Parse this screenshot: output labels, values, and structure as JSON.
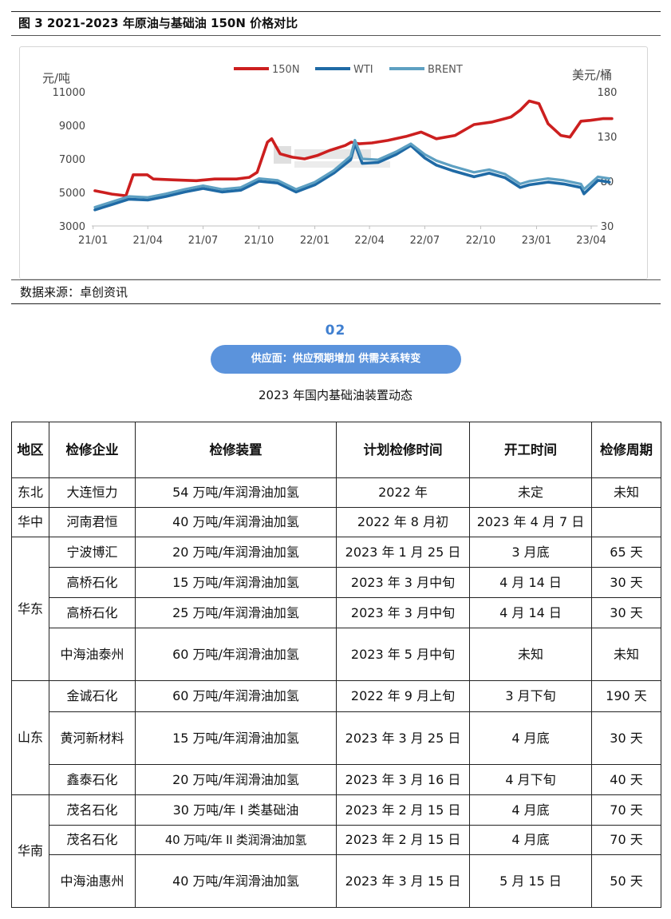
{
  "figure": {
    "title": "图 3 2021-2023 年原油与基础油 150N 价格对比",
    "source": "数据来源：卓创资讯"
  },
  "chart_data": {
    "type": "line",
    "title": "图 3 2021-2023 年原油与基础油 150N 价格对比",
    "x_ticks": [
      "21/01",
      "21/04",
      "21/07",
      "21/10",
      "22/01",
      "22/04",
      "22/07",
      "22/10",
      "23/01",
      "23/04"
    ],
    "x_range": [
      "2021-01",
      "2023-05"
    ],
    "y_left_label": "元/吨",
    "y_left_ticks": [
      3000,
      5000,
      7000,
      9000,
      11000
    ],
    "y_left_lim": [
      3000,
      11000
    ],
    "y_right_label": "美元/桶",
    "y_right_ticks": [
      30,
      80,
      130,
      180
    ],
    "y_right_lim": [
      30,
      180
    ],
    "legend_position": "top-center",
    "grid": false,
    "series": [
      {
        "name": "150N",
        "axis": "left",
        "color": "#cc1f1f",
        "x": [
          "2021-01-04",
          "2021-02-01",
          "2021-02-24",
          "2021-03-08",
          "2021-03-31",
          "2021-04-10",
          "2021-05-15",
          "2021-06-20",
          "2021-07-20",
          "2021-08-25",
          "2021-09-15",
          "2021-09-28",
          "2021-10-15",
          "2021-10-22",
          "2021-11-05",
          "2021-11-25",
          "2021-12-15",
          "2022-01-05",
          "2022-01-25",
          "2022-02-20",
          "2022-03-02",
          "2022-03-15",
          "2022-04-05",
          "2022-05-01",
          "2022-06-01",
          "2022-06-25",
          "2022-07-20",
          "2022-08-20",
          "2022-09-20",
          "2022-10-20",
          "2022-11-20",
          "2022-12-05",
          "2022-12-20",
          "2023-01-05",
          "2023-01-20",
          "2023-02-10",
          "2023-02-25",
          "2023-03-15",
          "2023-03-31",
          "2023-04-20",
          "2023-05-05"
        ],
        "values": [
          5100,
          4900,
          4800,
          6050,
          6050,
          5800,
          5750,
          5700,
          5800,
          5800,
          5900,
          6200,
          8000,
          8200,
          7300,
          7100,
          7000,
          7200,
          7500,
          7800,
          8000,
          7900,
          7950,
          8100,
          8350,
          8600,
          8200,
          8400,
          9050,
          9200,
          9500,
          9900,
          10450,
          10300,
          9100,
          8400,
          8300,
          9250,
          9300,
          9400,
          9400
        ]
      },
      {
        "name": "WTI",
        "axis": "right",
        "color": "#1f6aa5",
        "x": [
          "2021-01-04",
          "2021-02-01",
          "2021-03-01",
          "2021-04-01",
          "2021-05-01",
          "2021-06-01",
          "2021-07-01",
          "2021-08-01",
          "2021-09-01",
          "2021-10-01",
          "2021-11-01",
          "2021-12-01",
          "2022-01-01",
          "2022-02-01",
          "2022-03-01",
          "2022-03-08",
          "2022-03-20",
          "2022-04-15",
          "2022-05-15",
          "2022-06-08",
          "2022-07-01",
          "2022-07-20",
          "2022-08-15",
          "2022-09-20",
          "2022-10-15",
          "2022-11-10",
          "2022-12-05",
          "2022-12-20",
          "2023-01-20",
          "2023-02-15",
          "2023-03-15",
          "2023-03-20",
          "2023-04-12",
          "2023-05-01"
        ],
        "values": [
          48,
          54,
          60,
          59,
          63,
          68,
          72,
          68,
          70,
          80,
          78,
          68,
          76,
          89,
          104,
          122,
          100,
          101,
          110,
          120,
          106,
          98,
          92,
          85,
          89,
          84,
          73,
          76,
          79,
          77,
          73,
          66,
          81,
          79
        ]
      },
      {
        "name": "BRENT",
        "axis": "right",
        "color": "#5ea0c2",
        "x": [
          "2021-01-04",
          "2021-02-01",
          "2021-03-01",
          "2021-04-01",
          "2021-05-01",
          "2021-06-01",
          "2021-07-01",
          "2021-08-01",
          "2021-09-01",
          "2021-10-01",
          "2021-11-01",
          "2021-12-01",
          "2022-01-01",
          "2022-02-01",
          "2022-03-01",
          "2022-03-08",
          "2022-03-20",
          "2022-04-15",
          "2022-05-15",
          "2022-06-08",
          "2022-07-01",
          "2022-07-20",
          "2022-08-15",
          "2022-09-20",
          "2022-10-15",
          "2022-11-10",
          "2022-12-05",
          "2022-12-20",
          "2023-01-20",
          "2023-02-15",
          "2023-03-15",
          "2023-03-20",
          "2023-04-12",
          "2023-05-01"
        ],
        "values": [
          51,
          57,
          63,
          62,
          66,
          71,
          75,
          71,
          73,
          83,
          81,
          71,
          79,
          92,
          108,
          126,
          105,
          104,
          113,
          122,
          110,
          103,
          97,
          90,
          93,
          88,
          77,
          80,
          83,
          81,
          77,
          71,
          85,
          83
        ]
      }
    ]
  },
  "section": {
    "number": "02",
    "heading": "供应面：供应预期增加 供需关系转变"
  },
  "table": {
    "caption": "2023 年国内基础油装置动态",
    "headers": [
      "地区",
      "检修企业",
      "检修装置",
      "计划检修时间",
      "开工时间",
      "检修周期"
    ],
    "regions": [
      "东北",
      "华中",
      "华东",
      "山东",
      "华南"
    ],
    "rows": [
      [
        "大连恒力",
        "54 万吨/年润滑油加氢",
        "2022 年",
        "未定",
        "未知"
      ],
      [
        "河南君恒",
        "40 万吨/年润滑油加氢",
        "2022 年 8 月初",
        "2023 年 4 月 7 日",
        ""
      ],
      [
        "宁波博汇",
        "20 万吨/年润滑油加氢",
        "2023 年 1 月 25 日",
        "3 月底",
        "65 天"
      ],
      [
        "高桥石化",
        "15 万吨/年润滑油加氢",
        "2023 年 3 月中旬",
        "4 月 14 日",
        "30 天"
      ],
      [
        "高桥石化",
        "25 万吨/年润滑油加氢",
        "2023 年 3 月中旬",
        "4 月 14 日",
        "30 天"
      ],
      [
        "中海油泰州",
        "60 万吨/年润滑油加氢",
        "2023 年 5 月中旬",
        "未知",
        "未知"
      ],
      [
        "金诚石化",
        "60 万吨/年润滑油加氢",
        "2022 年 9 月上旬",
        "3 月下旬",
        "190 天"
      ],
      [
        "黄河新材料",
        "15 万吨/年润滑油加氢",
        "2023 年 3 月 25 日",
        "4 月底",
        "30 天"
      ],
      [
        "鑫泰石化",
        "20 万吨/年润滑油加氢",
        "2023 年 3 月 16 日",
        "4 月下旬",
        "40 天"
      ],
      [
        "茂名石化",
        "30 万吨/年 I 类基础油",
        "2023 年 2 月 15 日",
        "4 月底",
        "70 天"
      ],
      [
        "茂名石化",
        "40 万吨/年 II 类润滑油加氢",
        "2023 年 2 月 15 日",
        "4 月底",
        "70 天"
      ],
      [
        "中海油惠州",
        "40 万吨/年润滑油加氢",
        "2023 年 3 月 15 日",
        "5 月 15 日",
        "50 天"
      ]
    ]
  }
}
